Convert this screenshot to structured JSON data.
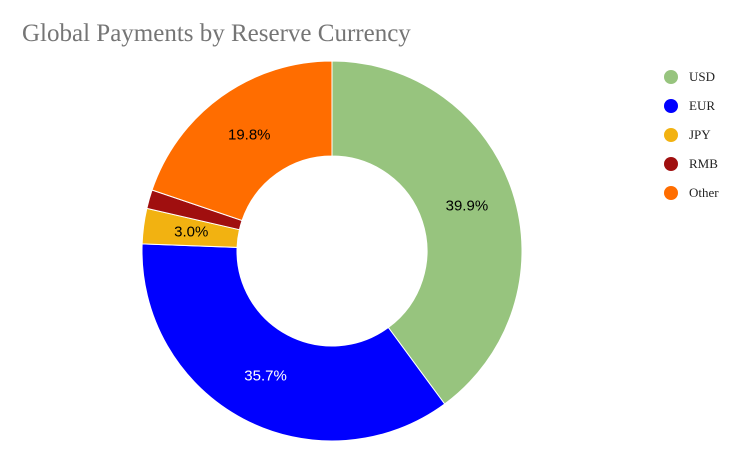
{
  "chart_data": {
    "type": "pie",
    "title": "Global Payments by Reserve Currency",
    "donut": true,
    "legend_position": "right",
    "categories": [
      "USD",
      "EUR",
      "JPY",
      "RMB",
      "Other"
    ],
    "values": [
      39.9,
      35.7,
      3.0,
      1.6,
      19.8
    ],
    "value_labels": [
      "39.9%",
      "35.7%",
      "3.0%",
      "",
      "19.8%"
    ],
    "colors": [
      "#97c47e",
      "#0000ff",
      "#f2b211",
      "#a00f0f",
      "#ff6d00"
    ],
    "label_colors": [
      "#000000",
      "#ffffff",
      "#000000",
      "#ffffff",
      "#000000"
    ]
  }
}
